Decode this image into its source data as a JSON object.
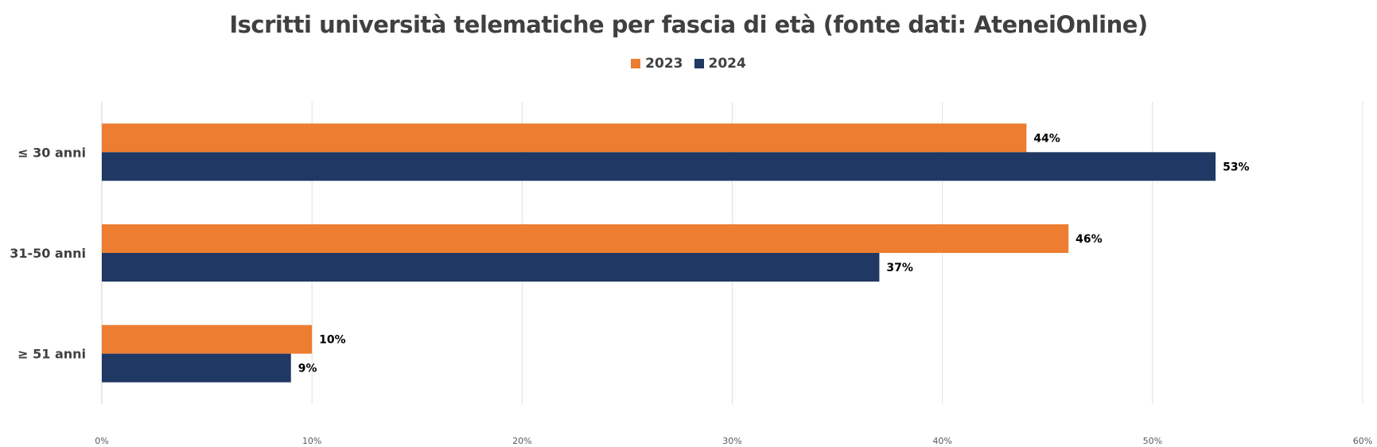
{
  "chart_data": {
    "type": "bar",
    "orientation": "horizontal",
    "title": "Iscritti università telematiche per fascia di età  (fonte dati: AteneiOnline)",
    "categories": [
      "≤ 30 anni",
      "31-50 anni",
      "≥ 51 anni"
    ],
    "series": [
      {
        "name": "2023",
        "color": "#ED7D31",
        "values": [
          44,
          46,
          10
        ],
        "labels": [
          "44%",
          "46%",
          "10%"
        ]
      },
      {
        "name": "2024",
        "color": "#203864",
        "values": [
          53,
          37,
          9
        ],
        "labels": [
          "53%",
          "37%",
          "9%"
        ]
      }
    ],
    "xlim": [
      0,
      60
    ],
    "xticks": [
      0,
      10,
      20,
      30,
      40,
      50,
      60
    ],
    "xtick_labels": [
      "0%",
      "10%",
      "20%",
      "30%",
      "40%",
      "50%",
      "60%"
    ],
    "grid": true,
    "legend_position": "top-center"
  }
}
